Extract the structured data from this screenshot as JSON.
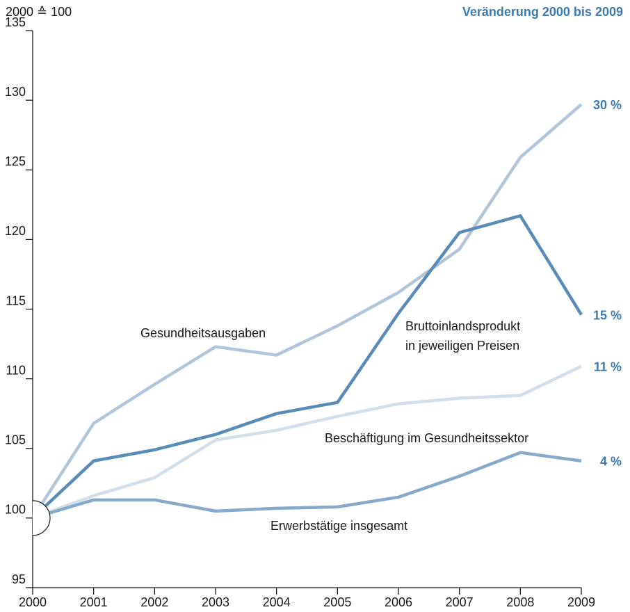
{
  "chart_data": {
    "type": "line",
    "unit_label": "2000 ≙ 100",
    "header": "Veränderung 2000 bis 2009",
    "x": [
      2000,
      2001,
      2002,
      2003,
      2004,
      2005,
      2006,
      2007,
      2008,
      2009
    ],
    "xlim": [
      2000,
      2009
    ],
    "xticks": [
      2000,
      2001,
      2002,
      2003,
      2004,
      2005,
      2006,
      2007,
      2008,
      2009
    ],
    "ylim": [
      95,
      135
    ],
    "yticks": [
      95,
      100,
      105,
      110,
      115,
      120,
      125,
      130,
      135
    ],
    "series": [
      {
        "name_lines": [
          "Beschäftigung im Gesundheitssektor"
        ],
        "color": "#d3dfeb",
        "values": [
          100,
          101.6,
          102.9,
          105.6,
          106.3,
          107.3,
          108.2,
          108.6,
          108.8,
          110.9
        ],
        "change": 11,
        "change_label": "11 %"
      },
      {
        "name_lines": [
          "Gesundheitsausgaben"
        ],
        "color": "#b1c5db",
        "values": [
          100,
          106.8,
          109.6,
          112.3,
          111.7,
          113.8,
          116.2,
          119.3,
          125.9,
          129.7
        ],
        "change": 30,
        "change_label": "30 %"
      },
      {
        "name_lines": [
          "Erwerbstätige insgesamt"
        ],
        "color": "#89a9c8",
        "values": [
          100,
          101.3,
          101.3,
          100.5,
          100.7,
          100.8,
          101.5,
          103.0,
          104.7,
          104.1
        ],
        "change": 4,
        "change_label": "4 %"
      },
      {
        "name_lines": [
          "Bruttoinlandsprodukt",
          "in jeweiligen Preisen"
        ],
        "color": "#5a8cb7",
        "values": [
          100,
          104.1,
          104.9,
          106.0,
          107.5,
          108.3,
          114.7,
          120.5,
          121.7,
          114.6
        ],
        "change": 15,
        "change_label": "15 %"
      }
    ]
  }
}
